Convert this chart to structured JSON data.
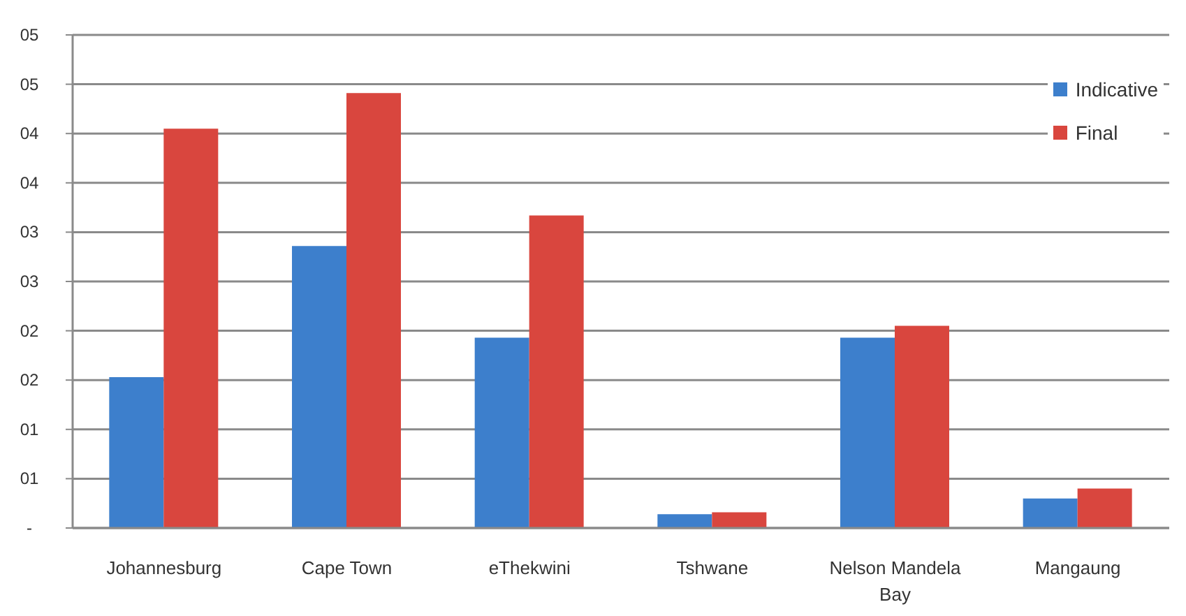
{
  "chart_data": {
    "type": "bar",
    "categories": [
      "Johannesburg",
      "Cape Town",
      "eThekwini",
      "Tshwane",
      "Nelson Mandela Bay",
      "Mangaung"
    ],
    "series": [
      {
        "name": "Indicative",
        "color": "#3d7fcc",
        "values": [
          1.53,
          2.86,
          1.93,
          0.14,
          1.93,
          0.3
        ]
      },
      {
        "name": "Final",
        "color": "#d9463e",
        "values": [
          4.05,
          4.41,
          3.17,
          0.16,
          2.05,
          0.4
        ]
      }
    ],
    "ylim": [
      0,
      5
    ],
    "yticks": [
      {
        "value": 0,
        "label": "-"
      },
      {
        "value": 0.5,
        "label": "01"
      },
      {
        "value": 1,
        "label": "01"
      },
      {
        "value": 1.5,
        "label": "02"
      },
      {
        "value": 2,
        "label": "02"
      },
      {
        "value": 2.5,
        "label": "03"
      },
      {
        "value": 3,
        "label": "03"
      },
      {
        "value": 3.5,
        "label": "04"
      },
      {
        "value": 4,
        "label": "04"
      },
      {
        "value": 4.5,
        "label": "05"
      },
      {
        "value": 5,
        "label": "05"
      }
    ],
    "grid": "y",
    "legend": "top right"
  }
}
